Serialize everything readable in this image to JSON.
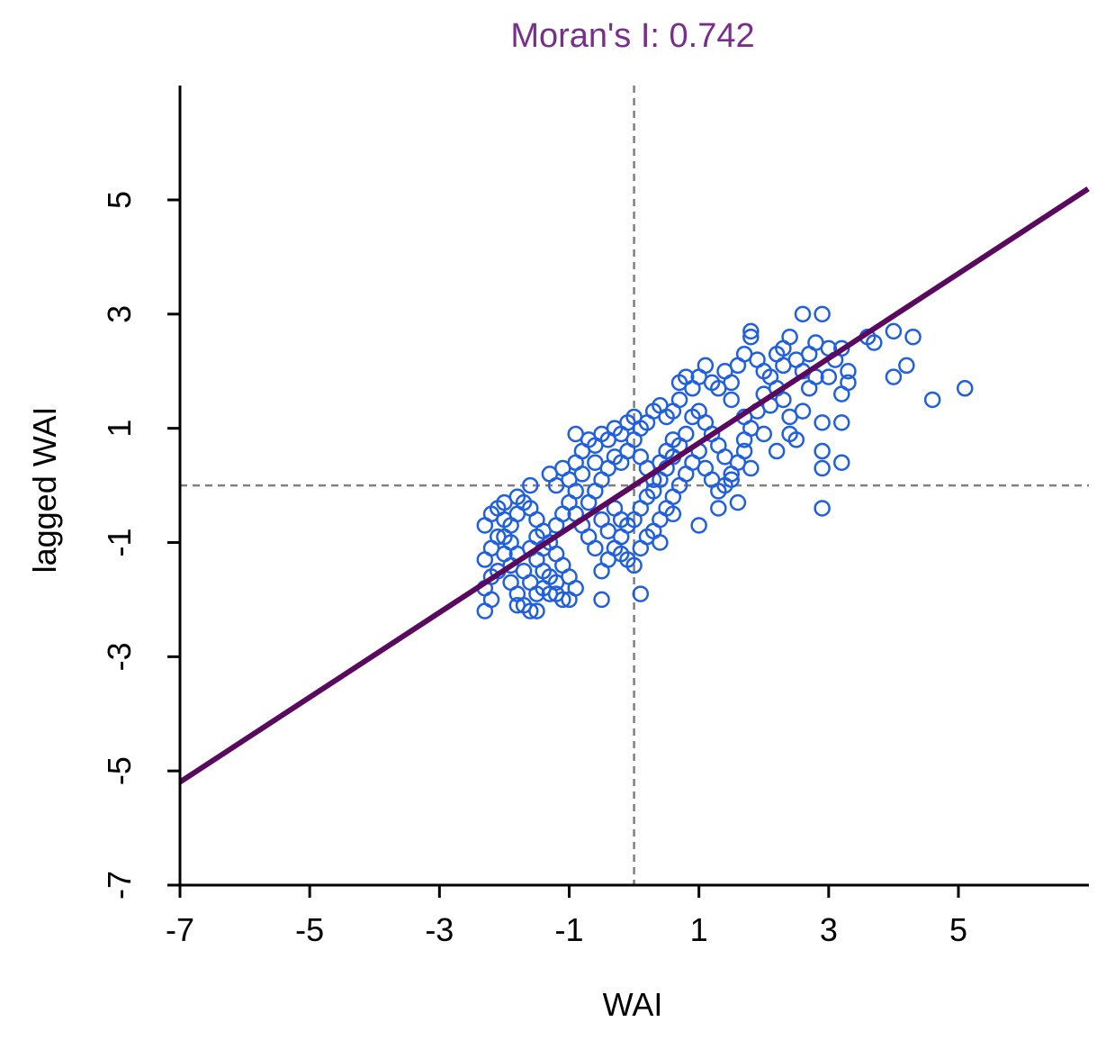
{
  "chart_data": {
    "type": "scatter",
    "title": "Moran's I: 0.742",
    "xlabel": "WAI",
    "ylabel": "lagged WAI",
    "xlim": [
      -7,
      7
    ],
    "ylim": [
      -7,
      7
    ],
    "x_ticks": [
      -7,
      -5,
      -3,
      -1,
      1,
      3,
      5
    ],
    "y_ticks": [
      -7,
      -5,
      -3,
      -1,
      1,
      3,
      5
    ],
    "x_tick_labels": [
      "-7",
      "-5",
      "-3",
      "-1",
      "1",
      "3",
      "5"
    ],
    "y_tick_labels": [
      "-7",
      "-5",
      "-3",
      "-1",
      "1",
      "3",
      "5"
    ],
    "reference_lines": {
      "vertical_x": 0,
      "horizontal_y": 0,
      "style": "dashed"
    },
    "regression_line": {
      "slope": 0.742,
      "intercept": 0
    },
    "grid": false,
    "colors": {
      "points": "#1f5fe0",
      "regression": "#5a0a5e",
      "title": "#7a2e8c",
      "reference": "#808080"
    },
    "points": [
      [
        -2.3,
        -2.2
      ],
      [
        -2.2,
        -2.0
      ],
      [
        -2.3,
        -1.8
      ],
      [
        -2.2,
        -1.6
      ],
      [
        -2.1,
        -1.5
      ],
      [
        -2.3,
        -1.3
      ],
      [
        -2.2,
        -1.1
      ],
      [
        -2.1,
        -0.9
      ],
      [
        -2.0,
        -1.2
      ],
      [
        -1.9,
        -1.4
      ],
      [
        -1.9,
        -1.7
      ],
      [
        -1.8,
        -1.9
      ],
      [
        -1.8,
        -2.1
      ],
      [
        -1.7,
        -2.1
      ],
      [
        -1.6,
        -2.2
      ],
      [
        -1.5,
        -2.2
      ],
      [
        -1.5,
        -1.9
      ],
      [
        -1.4,
        -1.8
      ],
      [
        -1.3,
        -1.9
      ],
      [
        -1.2,
        -1.9
      ],
      [
        -1.1,
        -2.0
      ],
      [
        -1.0,
        -2.0
      ],
      [
        -0.9,
        -1.8
      ],
      [
        -1.0,
        -1.6
      ],
      [
        -1.1,
        -1.4
      ],
      [
        -1.2,
        -1.2
      ],
      [
        -1.3,
        -1.0
      ],
      [
        -1.4,
        -0.8
      ],
      [
        -1.5,
        -0.6
      ],
      [
        -1.6,
        -0.4
      ],
      [
        -1.7,
        -0.3
      ],
      [
        -1.8,
        -0.5
      ],
      [
        -1.9,
        -0.7
      ],
      [
        -2.0,
        -0.6
      ],
      [
        -2.1,
        -0.4
      ],
      [
        -2.2,
        -0.5
      ],
      [
        -2.3,
        -0.7
      ],
      [
        -2.0,
        -0.3
      ],
      [
        -1.8,
        -0.2
      ],
      [
        -1.6,
        -1.1
      ],
      [
        -1.5,
        -1.3
      ],
      [
        -1.4,
        -1.5
      ],
      [
        -1.3,
        -1.6
      ],
      [
        -1.2,
        -1.7
      ],
      [
        -1.6,
        -1.7
      ],
      [
        -1.7,
        -1.5
      ],
      [
        -1.8,
        -1.2
      ],
      [
        -1.9,
        -1.0
      ],
      [
        -2.0,
        -0.9
      ],
      [
        -1.5,
        -0.9
      ],
      [
        -1.4,
        -1.1
      ],
      [
        -1.2,
        -0.7
      ],
      [
        -1.1,
        -0.5
      ],
      [
        -1.0,
        -0.3
      ],
      [
        -0.9,
        -0.1
      ],
      [
        -1.0,
        0.1
      ],
      [
        -1.1,
        0.3
      ],
      [
        -0.9,
        0.4
      ],
      [
        -0.8,
        0.6
      ],
      [
        -0.9,
        0.9
      ],
      [
        -0.7,
        0.8
      ],
      [
        -0.6,
        0.7
      ],
      [
        -0.5,
        0.9
      ],
      [
        -0.4,
        0.8
      ],
      [
        -0.3,
        1.0
      ],
      [
        -0.2,
        0.9
      ],
      [
        -0.1,
        1.1
      ],
      [
        0.0,
        1.2
      ],
      [
        0.1,
        1.0
      ],
      [
        0.2,
        1.1
      ],
      [
        0.3,
        1.3
      ],
      [
        0.4,
        1.4
      ],
      [
        0.5,
        1.2
      ],
      [
        0.6,
        1.3
      ],
      [
        0.7,
        1.5
      ],
      [
        0.7,
        1.8
      ],
      [
        0.8,
        1.9
      ],
      [
        0.9,
        1.7
      ],
      [
        1.0,
        1.9
      ],
      [
        1.1,
        2.1
      ],
      [
        1.2,
        1.8
      ],
      [
        1.3,
        1.7
      ],
      [
        1.4,
        2.0
      ],
      [
        1.5,
        1.8
      ],
      [
        1.6,
        2.1
      ],
      [
        1.7,
        2.3
      ],
      [
        1.8,
        2.6
      ],
      [
        1.8,
        2.7
      ],
      [
        1.9,
        2.2
      ],
      [
        2.0,
        2.0
      ],
      [
        2.1,
        1.9
      ],
      [
        2.2,
        2.3
      ],
      [
        2.3,
        2.1
      ],
      [
        2.4,
        2.6
      ],
      [
        2.5,
        2.2
      ],
      [
        2.6,
        3.0
      ],
      [
        2.7,
        2.3
      ],
      [
        2.8,
        2.5
      ],
      [
        2.9,
        3.0
      ],
      [
        3.0,
        2.4
      ],
      [
        3.1,
        2.2
      ],
      [
        3.2,
        2.4
      ],
      [
        3.3,
        2.0
      ],
      [
        3.3,
        1.8
      ],
      [
        3.2,
        1.6
      ],
      [
        3.6,
        2.6
      ],
      [
        3.7,
        2.5
      ],
      [
        4.0,
        2.7
      ],
      [
        4.3,
        2.6
      ],
      [
        4.2,
        2.1
      ],
      [
        4.0,
        1.9
      ],
      [
        4.6,
        1.5
      ],
      [
        5.1,
        1.7
      ],
      [
        3.2,
        1.1
      ],
      [
        3.2,
        0.4
      ],
      [
        2.9,
        0.6
      ],
      [
        2.9,
        0.3
      ],
      [
        2.9,
        -0.4
      ],
      [
        2.9,
        1.1
      ],
      [
        2.5,
        0.8
      ],
      [
        2.4,
        1.2
      ],
      [
        2.3,
        1.5
      ],
      [
        2.2,
        1.7
      ],
      [
        2.1,
        1.4
      ],
      [
        2.0,
        1.6
      ],
      [
        1.9,
        1.3
      ],
      [
        1.8,
        1.0
      ],
      [
        1.7,
        0.8
      ],
      [
        1.8,
        0.3
      ],
      [
        1.7,
        0.6
      ],
      [
        1.6,
        0.4
      ],
      [
        1.5,
        0.2
      ],
      [
        1.4,
        0.5
      ],
      [
        1.3,
        0.7
      ],
      [
        1.2,
        0.9
      ],
      [
        1.1,
        1.1
      ],
      [
        1.0,
        1.3
      ],
      [
        0.9,
        1.2
      ],
      [
        0.8,
        0.9
      ],
      [
        0.7,
        0.7
      ],
      [
        0.6,
        0.5
      ],
      [
        0.5,
        0.3
      ],
      [
        0.4,
        0.1
      ],
      [
        0.3,
        -0.1
      ],
      [
        0.2,
        -0.2
      ],
      [
        0.1,
        -0.4
      ],
      [
        0.0,
        -0.6
      ],
      [
        -0.1,
        -0.7
      ],
      [
        -0.2,
        -0.9
      ],
      [
        -0.3,
        -1.1
      ],
      [
        -0.2,
        -1.2
      ],
      [
        -0.1,
        -1.3
      ],
      [
        0.0,
        -1.4
      ],
      [
        0.1,
        -1.1
      ],
      [
        0.2,
        -0.9
      ],
      [
        0.3,
        -0.8
      ],
      [
        0.4,
        -0.6
      ],
      [
        0.5,
        -0.4
      ],
      [
        0.6,
        -0.2
      ],
      [
        0.7,
        0.0
      ],
      [
        0.8,
        0.2
      ],
      [
        0.9,
        0.4
      ],
      [
        1.0,
        0.6
      ],
      [
        1.1,
        0.3
      ],
      [
        1.2,
        0.1
      ],
      [
        1.3,
        -0.1
      ],
      [
        1.4,
        0.0
      ],
      [
        1.5,
        0.1
      ],
      [
        1.0,
        -0.7
      ],
      [
        1.3,
        -0.4
      ],
      [
        1.6,
        -0.3
      ],
      [
        0.6,
        -0.5
      ],
      [
        0.4,
        -1.0
      ],
      [
        0.1,
        -1.9
      ],
      [
        -0.5,
        -2.0
      ],
      [
        -0.5,
        -1.5
      ],
      [
        -0.4,
        -1.3
      ],
      [
        -0.6,
        -1.1
      ],
      [
        -0.7,
        -0.9
      ],
      [
        -0.8,
        -0.7
      ],
      [
        -0.9,
        -0.5
      ],
      [
        -0.7,
        -0.3
      ],
      [
        -0.6,
        -0.1
      ],
      [
        -0.5,
        0.1
      ],
      [
        -0.4,
        0.3
      ],
      [
        -0.3,
        0.5
      ],
      [
        -0.2,
        0.4
      ],
      [
        -0.1,
        0.6
      ],
      [
        0.0,
        0.8
      ],
      [
        0.1,
        0.5
      ],
      [
        0.2,
        0.3
      ],
      [
        0.3,
        0.1
      ],
      [
        0.4,
        0.4
      ],
      [
        0.5,
        0.6
      ],
      [
        0.6,
        0.8
      ],
      [
        -0.6,
        0.4
      ],
      [
        -0.8,
        0.2
      ],
      [
        -1.2,
        0.0
      ],
      [
        -1.3,
        0.2
      ],
      [
        -1.6,
        0.0
      ],
      [
        -0.3,
        -0.4
      ],
      [
        -0.2,
        -0.6
      ],
      [
        -0.4,
        -0.8
      ],
      [
        -0.5,
        -0.6
      ],
      [
        1.7,
        1.2
      ],
      [
        2.0,
        0.9
      ],
      [
        2.2,
        0.6
      ],
      [
        2.4,
        0.9
      ],
      [
        2.6,
        1.3
      ],
      [
        2.7,
        1.7
      ],
      [
        2.8,
        1.9
      ],
      [
        2.6,
        2.0
      ],
      [
        3.0,
        1.9
      ],
      [
        2.3,
        2.4
      ],
      [
        1.5,
        1.5
      ]
    ]
  }
}
